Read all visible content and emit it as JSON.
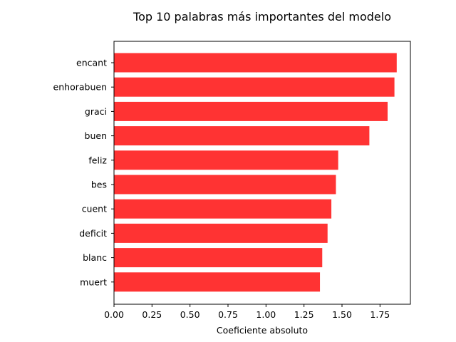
{
  "chart_data": {
    "type": "bar",
    "orientation": "horizontal",
    "title": "Top 10 palabras más importantes del modelo",
    "xlabel": "Coeficiente absoluto",
    "ylabel": "",
    "categories": [
      "encant",
      "enhorabuen",
      "graci",
      "buen",
      "feliz",
      "bes",
      "cuent",
      "deficit",
      "blanc",
      "muert"
    ],
    "values": [
      1.86,
      1.845,
      1.8,
      1.68,
      1.475,
      1.46,
      1.43,
      1.405,
      1.37,
      1.355
    ],
    "xlim": [
      0,
      1.95
    ],
    "xticks": [
      "0.00",
      "0.25",
      "0.50",
      "0.75",
      "1.00",
      "1.25",
      "1.50",
      "1.75"
    ],
    "bar_color": "#ff3333",
    "grid": false,
    "legend": "none"
  }
}
